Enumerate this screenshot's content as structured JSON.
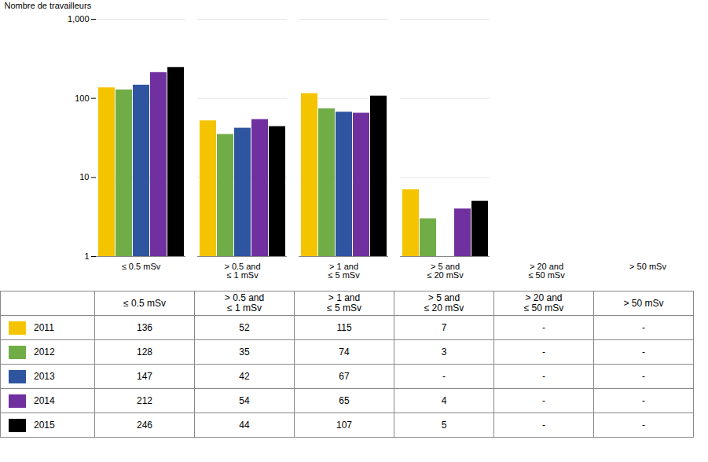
{
  "chart_data": {
    "type": "bar",
    "categories": [
      "≤ 0.5 mSv",
      "> 0.5 and\n≤ 1 mSv",
      "> 1 and\n≤ 5 mSv",
      "> 5 and\n≤ 20 mSv",
      "> 20 and\n≤ 50 mSv",
      "> 50 mSv"
    ],
    "series": [
      {
        "name": "2011",
        "color": "#F5C400",
        "values": [
          136,
          52,
          115,
          7,
          null,
          null
        ],
        "value_labels": [
          "136",
          "52",
          "115",
          "7",
          "-",
          "-"
        ]
      },
      {
        "name": "2012",
        "color": "#70AD47",
        "values": [
          128,
          35,
          74,
          3,
          null,
          null
        ],
        "value_labels": [
          "128",
          "35",
          "74",
          "3",
          "-",
          "-"
        ]
      },
      {
        "name": "2013",
        "color": "#2F54A0",
        "values": [
          147,
          42,
          67,
          null,
          null,
          null
        ],
        "value_labels": [
          "147",
          "42",
          "67",
          "-",
          "-",
          "-"
        ]
      },
      {
        "name": "2014",
        "color": "#7030A0",
        "values": [
          212,
          54,
          65,
          4,
          null,
          null
        ],
        "value_labels": [
          "212",
          "54",
          "65",
          "4",
          "-",
          "-"
        ]
      },
      {
        "name": "2015",
        "color": "#000000",
        "values": [
          246,
          44,
          107,
          5,
          null,
          null
        ],
        "value_labels": [
          "246",
          "44",
          "107",
          "5",
          "-",
          "-"
        ]
      }
    ],
    "ylabel": "Nombre de travailleurs",
    "ylim": [
      1,
      1000
    ],
    "yticks": [
      1,
      10,
      100,
      {
        "value": 1000,
        "label": "1,000"
      }
    ],
    "log": "y",
    "grid": true
  }
}
